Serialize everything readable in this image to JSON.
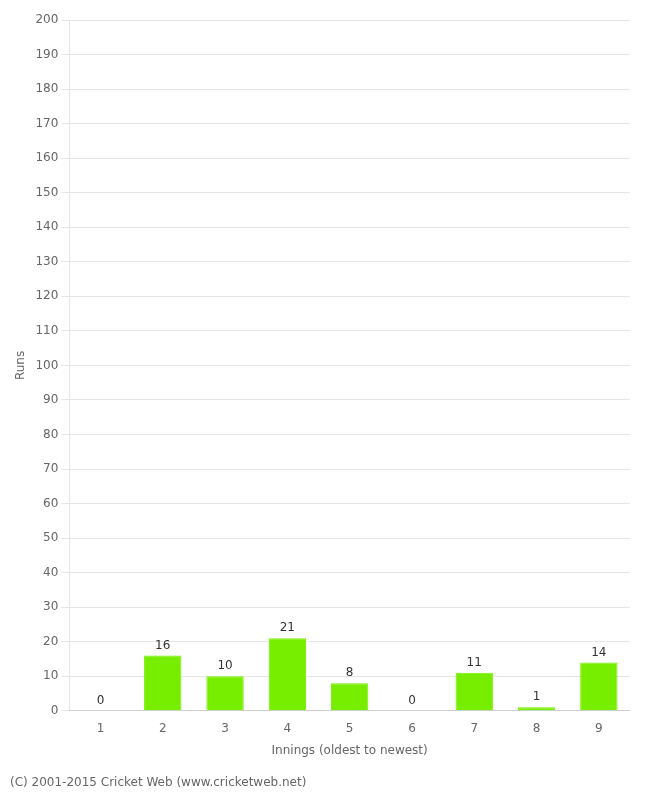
{
  "chart_data": {
    "type": "bar",
    "xlabel": "Innings (oldest to newest)",
    "ylabel": "Runs",
    "categories": [
      "1",
      "2",
      "3",
      "4",
      "5",
      "6",
      "7",
      "8",
      "9"
    ],
    "values": [
      0,
      16,
      10,
      21,
      8,
      0,
      11,
      1,
      14
    ],
    "color": "#77ee00",
    "ylim": [
      0,
      200
    ],
    "yticks": [
      0,
      10,
      20,
      30,
      40,
      50,
      60,
      70,
      80,
      90,
      100,
      110,
      120,
      130,
      140,
      150,
      160,
      170,
      180,
      190,
      200
    ],
    "grid": "y",
    "data_labels": true,
    "annotations": [
      "(C) 2001-2015 Cricket Web (www.cricketweb.net)"
    ]
  }
}
